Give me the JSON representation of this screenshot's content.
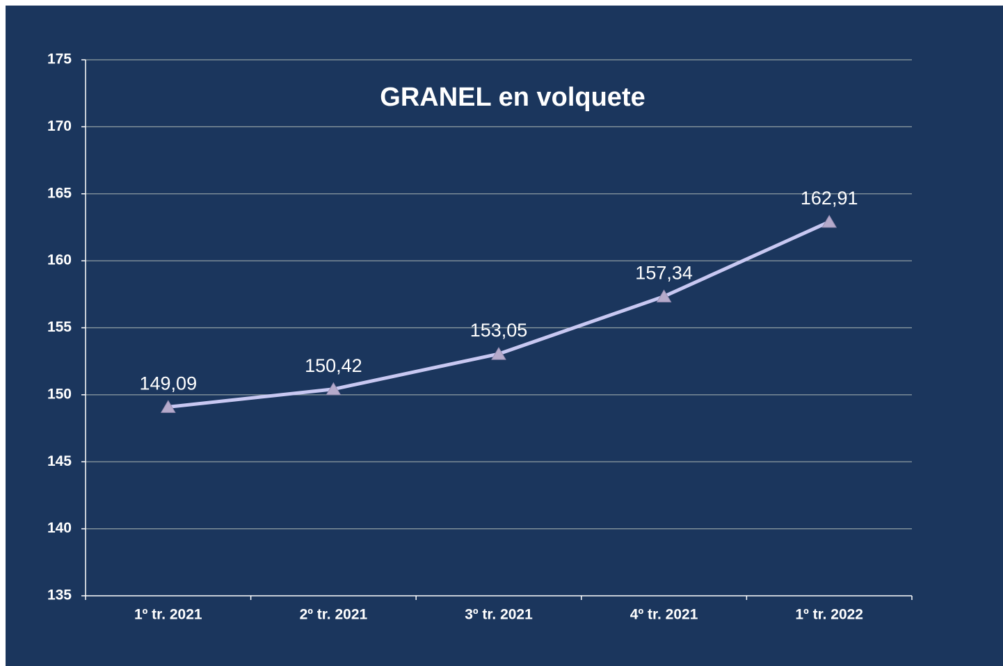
{
  "chart_data": {
    "type": "line",
    "title": "GRANEL en volquete",
    "categories": [
      "1º tr. 2021",
      "2º tr. 2021",
      "3º tr. 2021",
      "4º tr. 2021",
      "1º tr. 2022"
    ],
    "values": [
      149.09,
      150.42,
      153.05,
      157.34,
      162.91
    ],
    "value_labels": [
      "149,09",
      "150,42",
      "153,05",
      "157,34",
      "162,91"
    ],
    "color": "#c8c8f2",
    "marker_color": "#b5aacb",
    "ylim": [
      135,
      175
    ],
    "yticks": [
      135,
      140,
      145,
      150,
      155,
      160,
      165,
      170,
      175
    ],
    "grid": true
  }
}
